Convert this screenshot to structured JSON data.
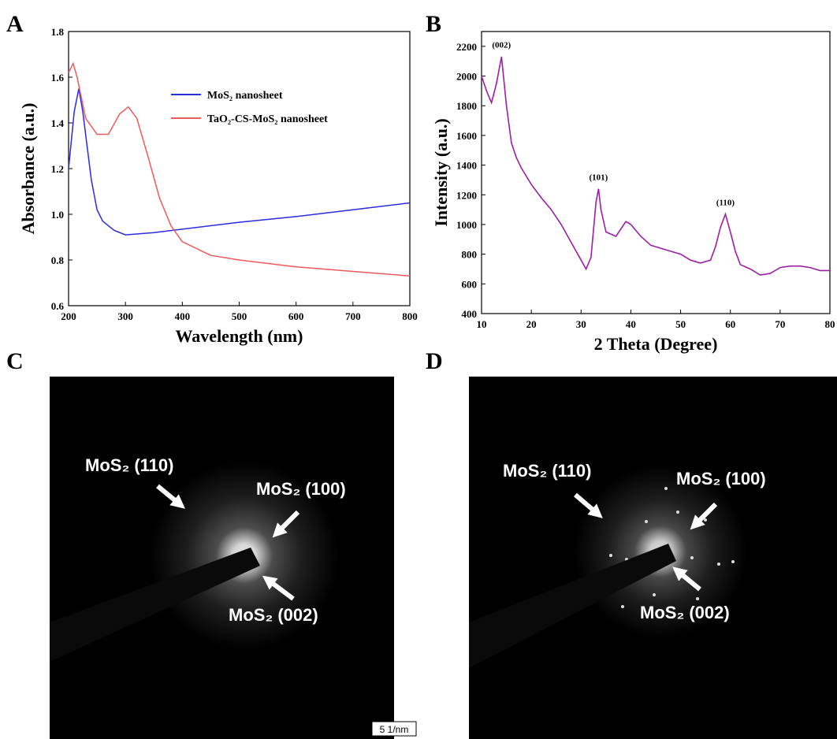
{
  "panel_labels": [
    "A",
    "B",
    "C",
    "D"
  ],
  "chart_data": [
    {
      "type": "line",
      "xlabel": "Wavelength (nm)",
      "ylabel": "Absorbance (a.u.)",
      "xlim": [
        200,
        800
      ],
      "ylim": [
        0.6,
        1.8
      ],
      "xticks": [
        200,
        300,
        400,
        500,
        600,
        700,
        800
      ],
      "yticks": [
        0.6,
        0.8,
        {
          "value": 1,
          "label": "1.0"
        },
        1.2,
        1.4,
        1.6,
        1.8
      ],
      "legend": "upper right",
      "series": [
        {
          "name": "MoS₂ nanosheet",
          "color": "#2a2ae0",
          "x": [
            200,
            210,
            218,
            225,
            240,
            250,
            260,
            280,
            300,
            350,
            400,
            500,
            600,
            700,
            800
          ],
          "values": [
            1.2,
            1.45,
            1.55,
            1.45,
            1.15,
            1.02,
            0.97,
            0.93,
            0.91,
            0.92,
            0.935,
            0.965,
            0.99,
            1.02,
            1.05
          ]
        },
        {
          "name": "TaO₂-CS-MoS₂ nanosheet",
          "color": "#ee5a5a",
          "x": [
            200,
            208,
            215,
            230,
            250,
            270,
            290,
            305,
            320,
            340,
            360,
            380,
            400,
            450,
            500,
            600,
            700,
            800
          ],
          "values": [
            1.62,
            1.66,
            1.6,
            1.42,
            1.35,
            1.35,
            1.44,
            1.47,
            1.42,
            1.25,
            1.07,
            0.95,
            0.88,
            0.82,
            0.8,
            0.77,
            0.75,
            0.73
          ]
        }
      ]
    },
    {
      "type": "line",
      "xlabel": "2 Theta (Degree)",
      "ylabel": "Intensity (a.u.)",
      "xlim": [
        10,
        80
      ],
      "ylim": [
        400,
        2300
      ],
      "xticks": [
        10,
        20,
        30,
        40,
        50,
        60,
        70,
        80
      ],
      "yticks": [
        400,
        600,
        800,
        1000,
        1200,
        1400,
        1600,
        1800,
        2000,
        2200
      ],
      "series": [
        {
          "color": "#9b1fa3",
          "x": [
            10,
            11,
            12,
            13,
            14,
            15,
            16,
            17,
            18,
            20,
            22,
            24,
            26,
            28,
            30,
            31,
            32,
            33,
            33.5,
            34,
            35,
            37,
            39,
            40,
            42,
            44,
            46,
            48,
            50,
            52,
            54,
            56,
            57,
            58,
            59,
            60,
            61,
            62,
            64,
            66,
            68,
            70,
            72,
            74,
            76,
            78,
            80
          ],
          "values": [
            2000,
            1900,
            1820,
            1950,
            2130,
            1800,
            1550,
            1450,
            1380,
            1270,
            1180,
            1100,
            1000,
            880,
            760,
            700,
            780,
            1150,
            1240,
            1100,
            950,
            920,
            1020,
            1000,
            920,
            860,
            840,
            820,
            800,
            760,
            740,
            760,
            850,
            980,
            1070,
            950,
            820,
            730,
            700,
            660,
            670,
            710,
            720,
            720,
            710,
            690,
            690
          ]
        }
      ],
      "annotations": [
        {
          "text": "(002)",
          "x": 14,
          "y": 2190
        },
        {
          "text": "(101)",
          "x": 33.5,
          "y": 1300
        },
        {
          "text": "(110)",
          "x": 59,
          "y": 1130
        }
      ]
    }
  ],
  "diffraction_images": [
    {
      "labels": [
        "MoS₂ (110)",
        "MoS₂ (100)",
        "MoS₂ (002)"
      ],
      "scale_bar": "5 1/nm"
    },
    {
      "labels": [
        "MoS₂ (110)",
        "MoS₂ (100)",
        "MoS₂ (002)"
      ]
    }
  ]
}
